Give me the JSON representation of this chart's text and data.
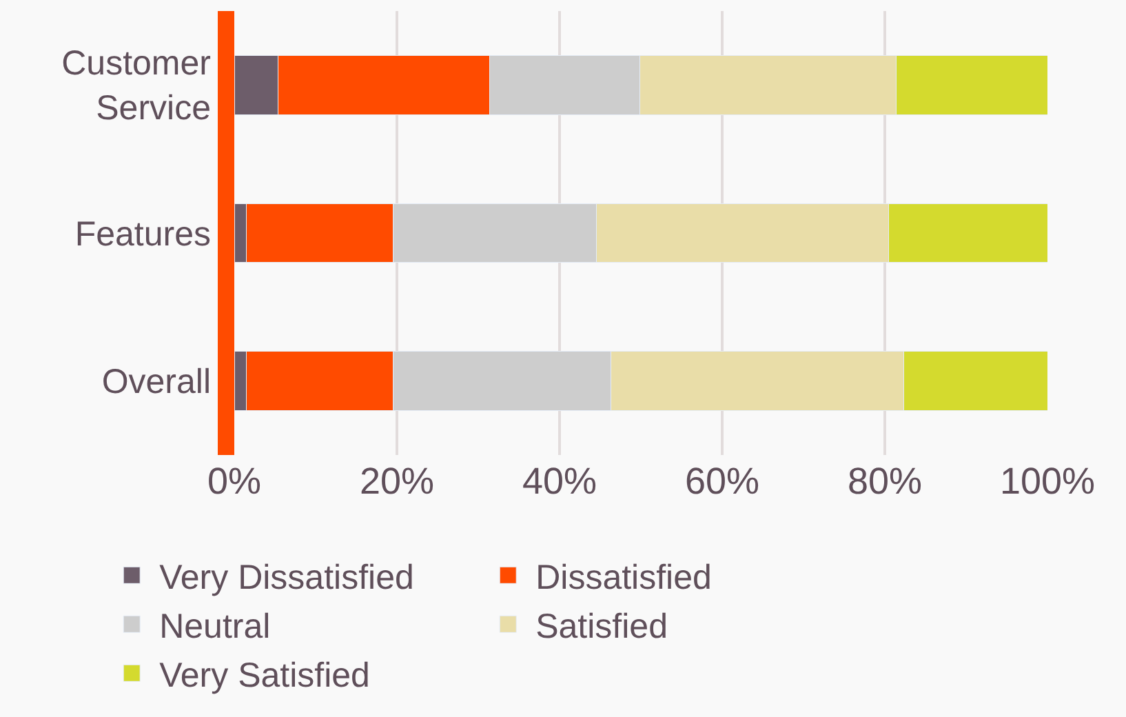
{
  "chart_data": {
    "type": "bar",
    "orientation": "horizontal",
    "stacked": true,
    "categories": [
      "Customer Service",
      "Features",
      "Overall"
    ],
    "series": [
      {
        "name": "Very Dissatisfied",
        "color": "#6d5d6a",
        "values": [
          5.4,
          1.5,
          1.5
        ]
      },
      {
        "name": "Dissatisfied",
        "color": "#ff4b00",
        "values": [
          26,
          18,
          18
        ]
      },
      {
        "name": "Neutral",
        "color": "#cdcdcd",
        "values": [
          18.5,
          25,
          26.8
        ]
      },
      {
        "name": "Satisfied",
        "color": "#e9dda8",
        "values": [
          31.5,
          36,
          36
        ]
      },
      {
        "name": "Very Satisfied",
        "color": "#d4da2e",
        "values": [
          18.6,
          19.5,
          17.7
        ]
      }
    ],
    "xlim": [
      0,
      100
    ],
    "xticks": [
      {
        "value": 0,
        "label": "0%"
      },
      {
        "value": 20,
        "label": "20%"
      },
      {
        "value": 40,
        "label": "40%"
      },
      {
        "value": 60,
        "label": "60%"
      },
      {
        "value": 80,
        "label": "80%"
      },
      {
        "value": 100,
        "label": "100%"
      }
    ],
    "grid": "x",
    "legend": "bottom"
  }
}
